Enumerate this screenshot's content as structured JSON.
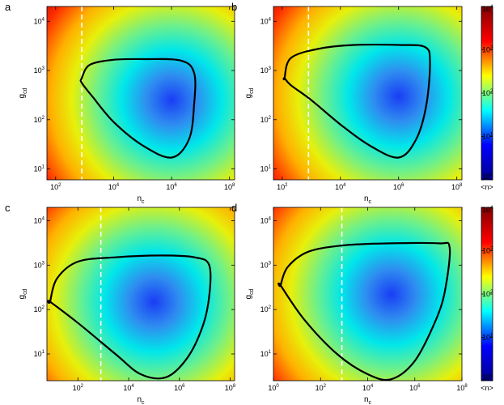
{
  "chart_data": [
    {
      "type": "heatmap",
      "panel_label": "a",
      "xlabel": "n",
      "xlabel_sub": "c",
      "ylabel": "g",
      "ylabel_sub": "cd",
      "x_scale": "log",
      "y_scale": "log",
      "xlim": [
        50,
        150000000
      ],
      "ylim": [
        6,
        20000
      ],
      "x_ticks": [
        {
          "base": "10",
          "exp": "2",
          "value": 100
        },
        {
          "base": "10",
          "exp": "4",
          "value": 10000
        },
        {
          "base": "10",
          "exp": "6",
          "value": 1000000
        },
        {
          "base": "10",
          "exp": "8",
          "value": 100000000
        }
      ],
      "y_ticks": [
        {
          "base": "10",
          "exp": "1",
          "value": 10
        },
        {
          "base": "10",
          "exp": "2",
          "value": 100
        },
        {
          "base": "10",
          "exp": "3",
          "value": 1000
        },
        {
          "base": "10",
          "exp": "4",
          "value": 10000
        }
      ],
      "dashed_line_x": 800,
      "contour": [
        [
          800,
          700
        ],
        [
          1500,
          1300
        ],
        [
          10000,
          1650
        ],
        [
          100000,
          1700
        ],
        [
          2000000,
          1600
        ],
        [
          6000000,
          900
        ],
        [
          6000000,
          200
        ],
        [
          4000000,
          40
        ],
        [
          1000000,
          17
        ],
        [
          100000,
          30
        ],
        [
          10000,
          90
        ],
        [
          2000,
          280
        ],
        [
          800,
          560
        ]
      ],
      "minimum": {
        "x": 1000000,
        "y": 250
      }
    },
    {
      "type": "heatmap",
      "panel_label": "b",
      "xlabel": "n",
      "xlabel_sub": "c",
      "ylabel": "g",
      "ylabel_sub": "cd",
      "x_scale": "log",
      "y_scale": "log",
      "xlim": [
        50,
        150000000
      ],
      "ylim": [
        6,
        20000
      ],
      "x_ticks": [
        {
          "base": "10",
          "exp": "2",
          "value": 100
        },
        {
          "base": "10",
          "exp": "4",
          "value": 10000
        },
        {
          "base": "10",
          "exp": "6",
          "value": 1000000
        },
        {
          "base": "10",
          "exp": "8",
          "value": 100000000
        }
      ],
      "y_ticks": [
        {
          "base": "10",
          "exp": "1",
          "value": 10
        },
        {
          "base": "10",
          "exp": "2",
          "value": 100
        },
        {
          "base": "10",
          "exp": "3",
          "value": 1000
        },
        {
          "base": "10",
          "exp": "4",
          "value": 10000
        }
      ],
      "dashed_line_x": 800,
      "contour": [
        [
          120,
          700
        ],
        [
          200,
          1800
        ],
        [
          2000,
          2800
        ],
        [
          30000,
          3300
        ],
        [
          1000000,
          3300
        ],
        [
          8000000,
          3000
        ],
        [
          12000000,
          1500
        ],
        [
          9000000,
          200
        ],
        [
          4000000,
          40
        ],
        [
          1000000,
          17
        ],
        [
          100000,
          30
        ],
        [
          10000,
          80
        ],
        [
          1000,
          250
        ],
        [
          200,
          500
        ],
        [
          120,
          700
        ]
      ],
      "minimum": {
        "x": 1000000,
        "y": 300
      }
    },
    {
      "type": "heatmap",
      "panel_label": "c",
      "xlabel": "n",
      "xlabel_sub": "c",
      "ylabel": "g",
      "ylabel_sub": "cd",
      "x_scale": "log",
      "y_scale": "log",
      "xlim": [
        6,
        150000000
      ],
      "ylim": [
        2.5,
        20000
      ],
      "x_ticks": [
        {
          "base": "10",
          "exp": "2",
          "value": 100
        },
        {
          "base": "10",
          "exp": "4",
          "value": 10000
        },
        {
          "base": "10",
          "exp": "6",
          "value": 1000000
        },
        {
          "base": "10",
          "exp": "8",
          "value": 100000000
        }
      ],
      "y_ticks": [
        {
          "base": "10",
          "exp": "1",
          "value": 10
        },
        {
          "base": "10",
          "exp": "2",
          "value": 100
        },
        {
          "base": "10",
          "exp": "3",
          "value": 1000
        },
        {
          "base": "10",
          "exp": "4",
          "value": 10000
        }
      ],
      "dashed_line_x": 800,
      "contour": [
        [
          8,
          150
        ],
        [
          15,
          500
        ],
        [
          100,
          1200
        ],
        [
          3000,
          1500
        ],
        [
          200000,
          1650
        ],
        [
          4000000,
          1500
        ],
        [
          15000000,
          1000
        ],
        [
          15000000,
          200
        ],
        [
          8000000,
          40
        ],
        [
          2000000,
          8
        ],
        [
          300000,
          3
        ],
        [
          30000,
          3.5
        ],
        [
          3000,
          10
        ],
        [
          100,
          50
        ],
        [
          8,
          150
        ]
      ],
      "minimum": {
        "x": 100000,
        "y": 150
      }
    },
    {
      "type": "heatmap",
      "panel_label": "d",
      "xlabel": "n",
      "xlabel_sub": "c",
      "ylabel": "g",
      "ylabel_sub": "cd",
      "x_scale": "log",
      "y_scale": "log",
      "xlim": [
        1,
        100000000
      ],
      "ylim": [
        2.5,
        20000
      ],
      "x_ticks": [
        {
          "base": "10",
          "exp": "0",
          "value": 1
        },
        {
          "base": "10",
          "exp": "2",
          "value": 100
        },
        {
          "base": "10",
          "exp": "4",
          "value": 10000
        },
        {
          "base": "10",
          "exp": "6",
          "value": 1000000
        },
        {
          "base": "10",
          "exp": "8",
          "value": 100000000
        }
      ],
      "y_ticks": [
        {
          "base": "10",
          "exp": "1",
          "value": 10
        },
        {
          "base": "10",
          "exp": "2",
          "value": 100
        },
        {
          "base": "10",
          "exp": "3",
          "value": 1000
        },
        {
          "base": "10",
          "exp": "4",
          "value": 10000
        }
      ],
      "dashed_line_x": 800,
      "contour": [
        [
          2,
          350
        ],
        [
          4,
          900
        ],
        [
          30,
          2000
        ],
        [
          1000,
          2800
        ],
        [
          100000,
          3100
        ],
        [
          10000000,
          3100
        ],
        [
          30000000,
          2500
        ],
        [
          20000000,
          300
        ],
        [
          8000000,
          60
        ],
        [
          1000000,
          7
        ],
        [
          100000,
          2.7
        ],
        [
          10000,
          3.5
        ],
        [
          500,
          10
        ],
        [
          20,
          60
        ],
        [
          2,
          350
        ]
      ],
      "minimum": {
        "x": 100000,
        "y": 220
      }
    }
  ],
  "colorbars": [
    {
      "label": "<n>",
      "scale": "log",
      "range": [
        1,
        10000
      ],
      "ticks": [
        {
          "base": "10",
          "exp": "0"
        },
        {
          "base": "10",
          "exp": "1"
        },
        {
          "base": "10",
          "exp": "2"
        },
        {
          "base": "10",
          "exp": "3"
        },
        {
          "base": "10",
          "exp": "4"
        }
      ]
    },
    {
      "label": "<n>",
      "scale": "log",
      "range": [
        1,
        10000
      ],
      "ticks": [
        {
          "base": "10",
          "exp": "0"
        },
        {
          "base": "10",
          "exp": "1"
        },
        {
          "base": "10",
          "exp": "2"
        },
        {
          "base": "10",
          "exp": "3"
        },
        {
          "base": "10",
          "exp": "4"
        }
      ]
    }
  ],
  "colormap": [
    "#00008f",
    "#0000ff",
    "#00ffff",
    "#ffff00",
    "#ff0000",
    "#800000"
  ]
}
